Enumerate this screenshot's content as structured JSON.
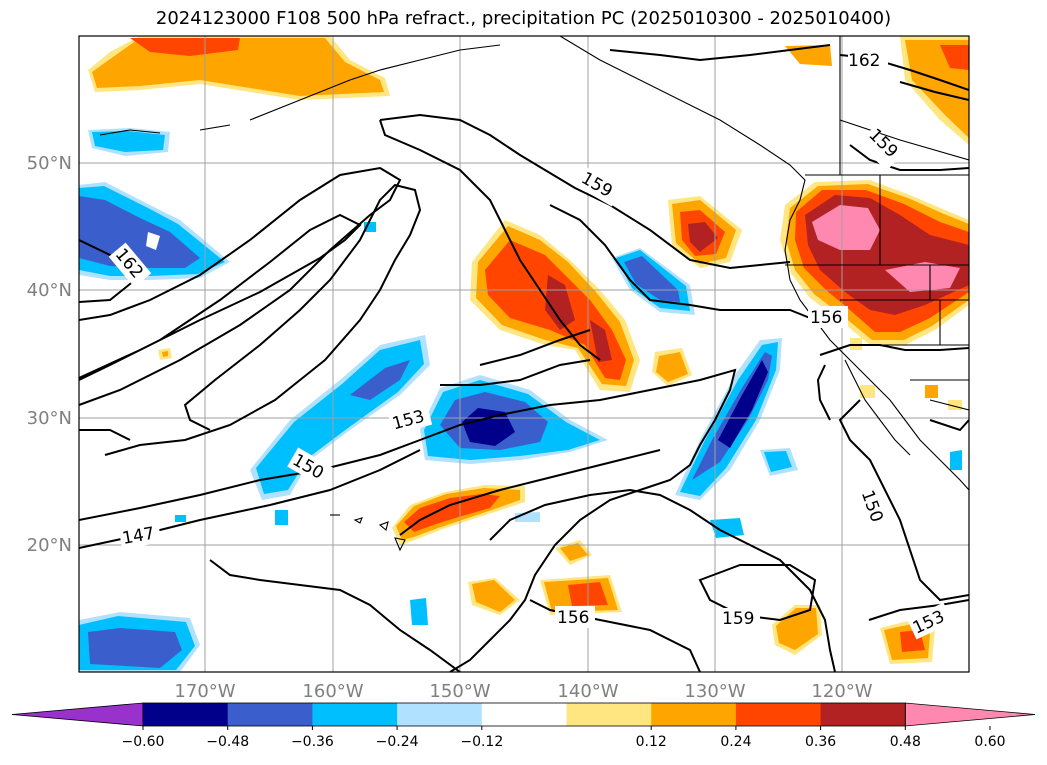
{
  "title": "2024123000 F108 500 hPa refract., precipitation PC (2025010300 - 2025010400)",
  "axes": {
    "lon_ticks": [
      "170°W",
      "160°W",
      "150°W",
      "140°W",
      "130°W",
      "120°W"
    ],
    "lat_ticks": [
      "50°N",
      "40°N",
      "30°N",
      "20°N"
    ],
    "extent": {
      "lon_min": -178,
      "lon_max": -108,
      "lat_min": 10,
      "lat_max": 60
    },
    "gridlines": true
  },
  "contour_labels": [
    "162",
    "159",
    "162",
    "159",
    "156",
    "153",
    "150",
    "147",
    "156",
    "159",
    "150",
    "153"
  ],
  "colorbar": {
    "ticks": [
      "−0.60",
      "−0.48",
      "−0.36",
      "−0.24",
      "−0.12",
      "0.12",
      "0.24",
      "0.36",
      "0.48",
      "0.60"
    ],
    "colors": [
      "#9932cc",
      "#00008b",
      "#3a5fcd",
      "#00bfff",
      "#b0e2ff",
      "#ffffff",
      "#ffe680",
      "#ffa500",
      "#ff4500",
      "#b22222",
      "#ff88b0"
    ],
    "extend": "both"
  },
  "colors": {
    "contour": "#000000",
    "grid": "#a0a0a0",
    "coast": "#000000",
    "tick_text": "#808080"
  }
}
